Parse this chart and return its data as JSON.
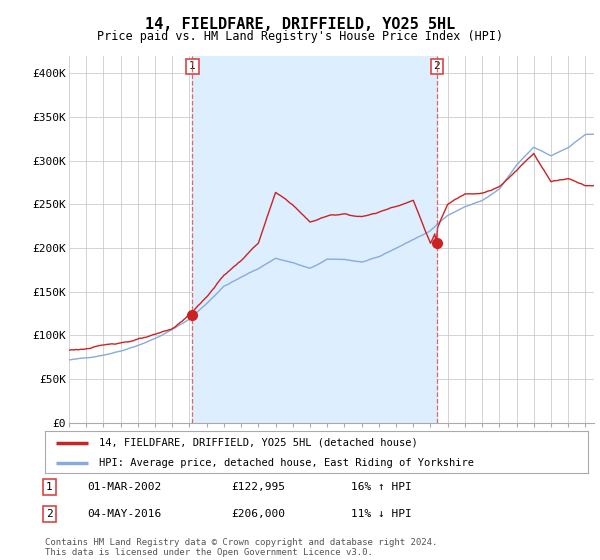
{
  "title": "14, FIELDFARE, DRIFFIELD, YO25 5HL",
  "subtitle": "Price paid vs. HM Land Registry's House Price Index (HPI)",
  "ylim": [
    0,
    420000
  ],
  "xlim_start": 1995.0,
  "xlim_end": 2025.5,
  "red_line_color": "#cc2222",
  "blue_line_color": "#88aadd",
  "vline_color": "#dd4444",
  "shade_color": "#ddeeff",
  "bg_color": "#ffffff",
  "grid_color": "#cccccc",
  "legend_label_red": "14, FIELDFARE, DRIFFIELD, YO25 5HL (detached house)",
  "legend_label_blue": "HPI: Average price, detached house, East Riding of Yorkshire",
  "transaction1_date": "01-MAR-2002",
  "transaction1_price": "£122,995",
  "transaction1_hpi": "16% ↑ HPI",
  "transaction2_date": "04-MAY-2016",
  "transaction2_price": "£206,000",
  "transaction2_hpi": "11% ↓ HPI",
  "footer": "Contains HM Land Registry data © Crown copyright and database right 2024.\nThis data is licensed under the Open Government Licence v3.0.",
  "transaction1_x": 2002.17,
  "transaction1_y": 122995,
  "transaction2_x": 2016.37,
  "transaction2_y": 206000
}
